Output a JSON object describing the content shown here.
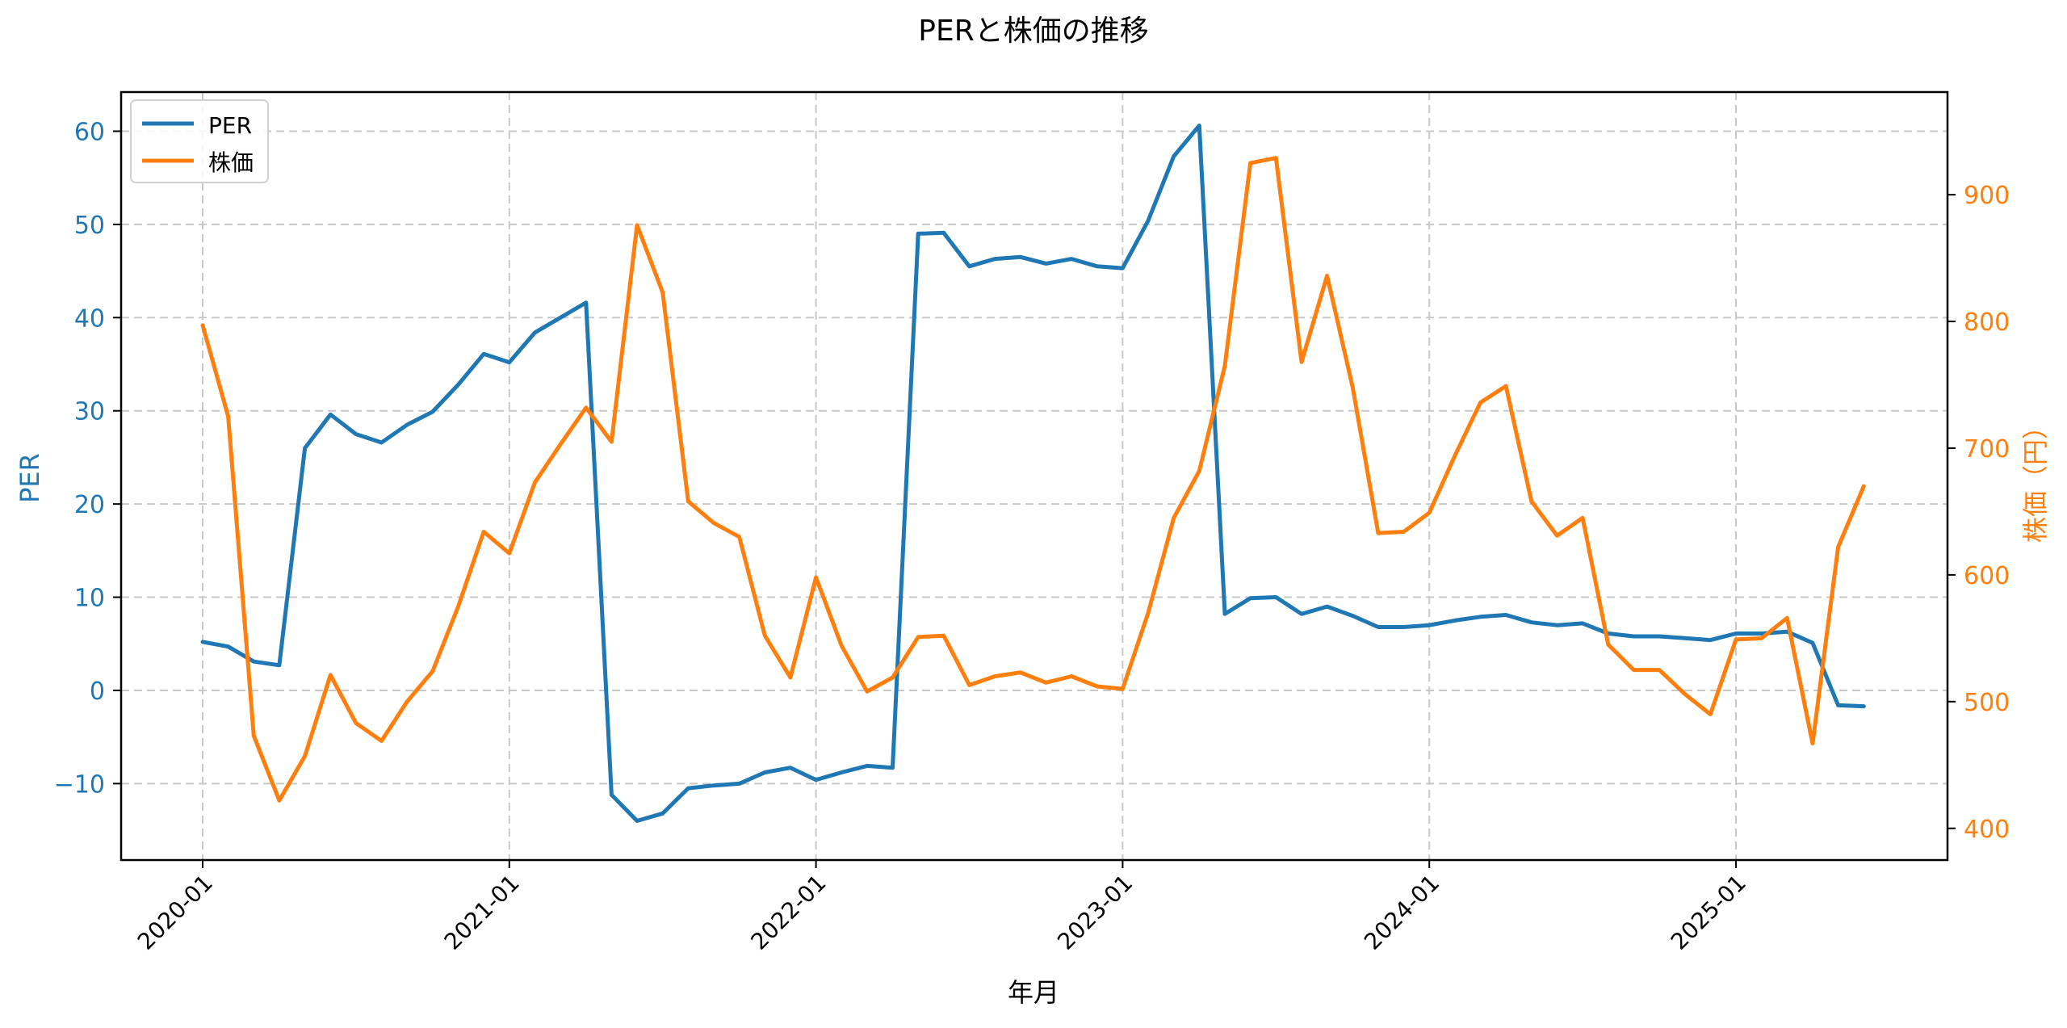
{
  "chart_data": {
    "type": "line",
    "title": "PERと株価の推移",
    "xlabel": "年月",
    "ylabel": "PER",
    "ylabel_right": "株価（円）",
    "x_tick_labels": [
      "2020-01",
      "2021-01",
      "2022-01",
      "2023-01",
      "2024-01",
      "2025-01"
    ],
    "y_ticks_left": [
      -10,
      0,
      10,
      20,
      30,
      40,
      50,
      60
    ],
    "y_ticks_right": [
      400,
      500,
      600,
      700,
      800,
      900
    ],
    "ylim_left": [
      -18.2,
      64.2
    ],
    "ylim_right": [
      375,
      981
    ],
    "grid": true,
    "legend_position": "upper left",
    "x_start": "2020-01",
    "x_frequency": "monthly",
    "x": [
      "2020-01",
      "2020-02",
      "2020-03",
      "2020-04",
      "2020-05",
      "2020-06",
      "2020-07",
      "2020-08",
      "2020-09",
      "2020-10",
      "2020-11",
      "2020-12",
      "2021-01",
      "2021-02",
      "2021-03",
      "2021-04",
      "2021-05",
      "2021-06",
      "2021-07",
      "2021-08",
      "2021-09",
      "2021-10",
      "2021-11",
      "2021-12",
      "2022-01",
      "2022-02",
      "2022-03",
      "2022-04",
      "2022-05",
      "2022-06",
      "2022-07",
      "2022-08",
      "2022-09",
      "2022-10",
      "2022-11",
      "2022-12",
      "2023-01",
      "2023-02",
      "2023-03",
      "2023-04",
      "2023-05",
      "2023-06",
      "2023-07",
      "2023-08",
      "2023-09",
      "2023-10",
      "2023-11",
      "2023-12",
      "2024-01",
      "2024-02",
      "2024-03",
      "2024-04",
      "2024-05",
      "2024-06",
      "2024-07",
      "2024-08",
      "2024-09",
      "2024-10",
      "2024-11",
      "2024-12",
      "2025-01",
      "2025-02",
      "2025-03",
      "2025-04",
      "2025-05",
      "2025-06"
    ],
    "series": [
      {
        "name": "PER",
        "axis": "left",
        "color": "#1f77b4",
        "values": [
          5.2,
          4.7,
          3.1,
          2.7,
          26.0,
          29.6,
          27.5,
          26.6,
          28.5,
          29.9,
          32.8,
          36.1,
          35.2,
          38.4,
          40.0,
          41.6,
          -11.2,
          -14.0,
          -13.2,
          -10.5,
          -10.2,
          -10.0,
          -8.8,
          -8.3,
          -9.6,
          -8.8,
          -8.1,
          -8.3,
          49.0,
          49.1,
          45.5,
          46.3,
          46.5,
          45.8,
          46.3,
          45.5,
          45.3,
          50.4,
          57.3,
          60.6,
          8.2,
          9.9,
          10.0,
          8.2,
          9.0,
          8.0,
          6.8,
          6.8,
          7.0,
          7.5,
          7.9,
          8.1,
          7.3,
          7.0,
          7.2,
          6.1,
          5.8,
          5.8,
          5.6,
          5.4,
          6.1,
          6.1,
          6.3,
          5.1,
          -1.6,
          -1.7
        ]
      },
      {
        "name": "株価",
        "axis": "right",
        "color": "#ff7f0e",
        "values": [
          797,
          725,
          473,
          422,
          457,
          521,
          483,
          469,
          500,
          524,
          575,
          634,
          617,
          673,
          703,
          732,
          705,
          876,
          823,
          658,
          641,
          630,
          552,
          519,
          598,
          544,
          508,
          519,
          551,
          552,
          513,
          520,
          523,
          515,
          520,
          512,
          510,
          570,
          645,
          682,
          765,
          925,
          929,
          768,
          836,
          748,
          633,
          634,
          649,
          694,
          736,
          749,
          658,
          631,
          645,
          545,
          525,
          525,
          506,
          490,
          549,
          550,
          566,
          467,
          622,
          670
        ]
      }
    ]
  },
  "colors": {
    "per": "#1f77b4",
    "price": "#ff7f0e",
    "grid": "#c8c8c8",
    "axis": "#000000"
  }
}
